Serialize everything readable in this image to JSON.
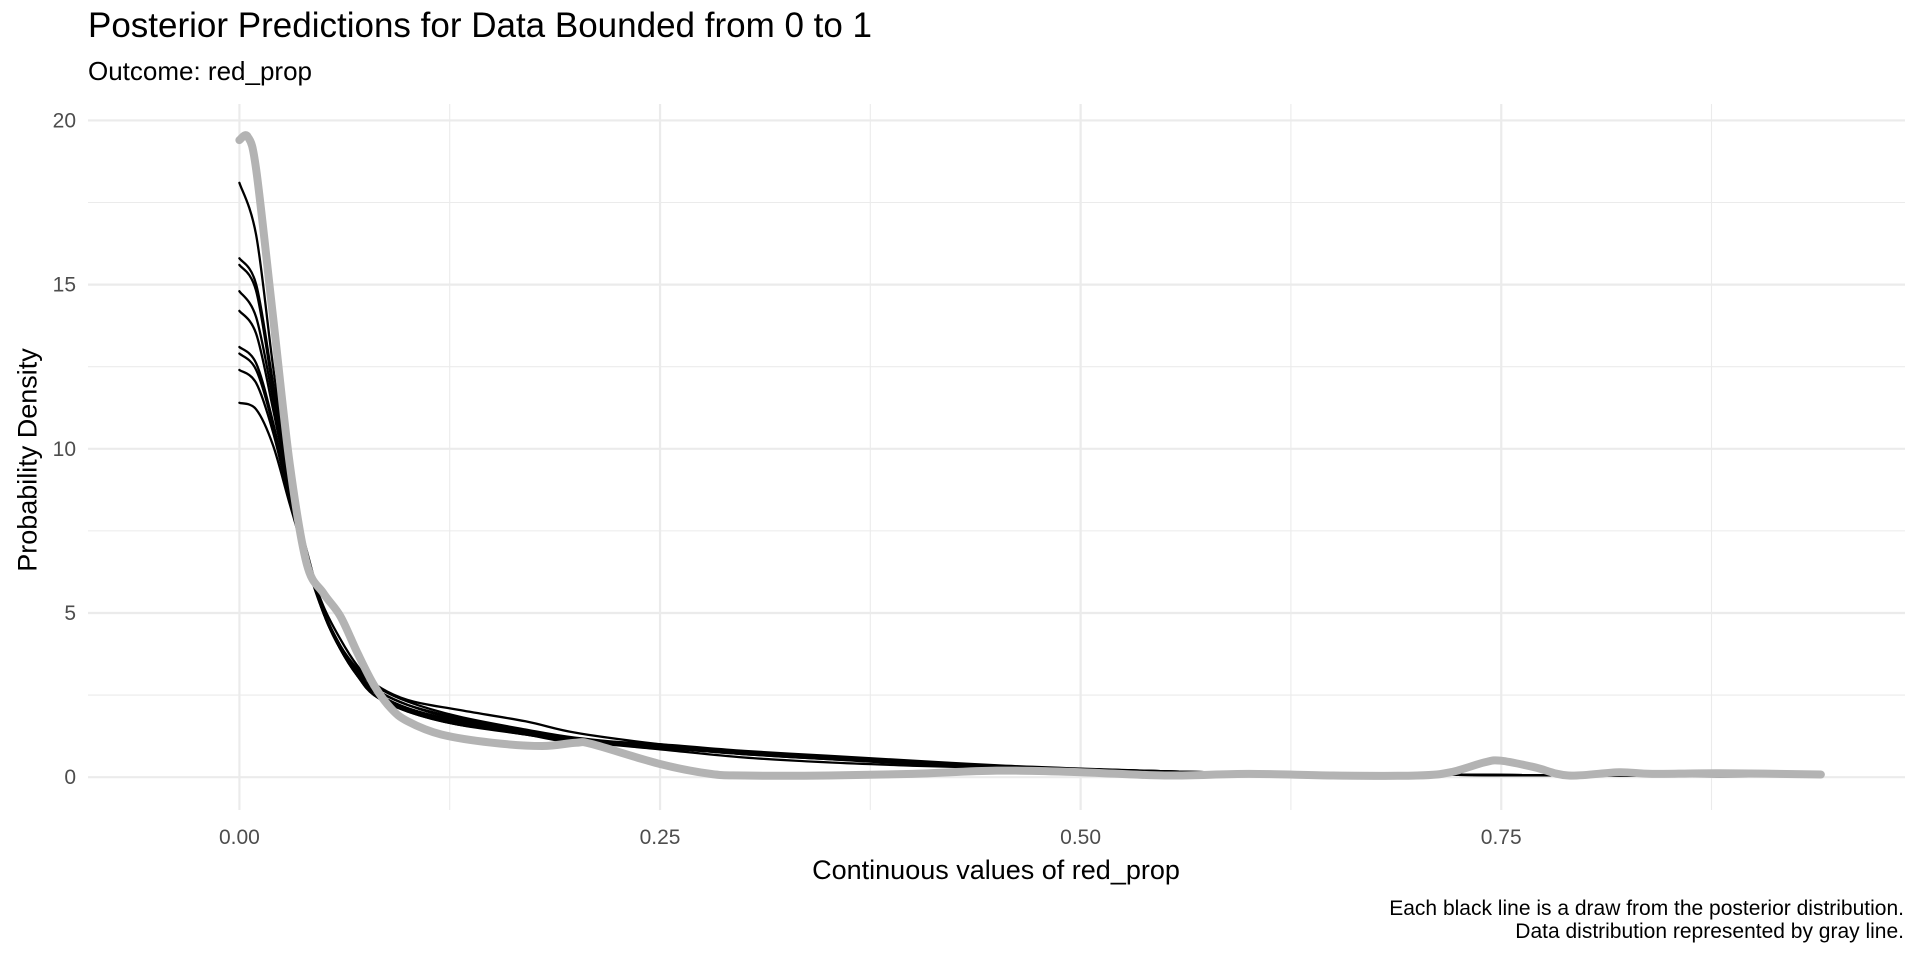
{
  "chart_data": {
    "type": "line",
    "title": "Posterior Predictions for Data Bounded from 0 to 1",
    "subtitle": "Outcome: red_prop",
    "xlabel": "Continuous values of red_prop",
    "ylabel": "Probability Density",
    "caption": [
      "Each black line is a draw from the posterior distribution.",
      "Data distribution represented by gray line."
    ],
    "xlim": [
      -0.09,
      0.99
    ],
    "ylim": [
      -1.0,
      20.5
    ],
    "x_ticks": [
      0.0,
      0.25,
      0.5,
      0.75
    ],
    "x_tick_labels": [
      "0.00",
      "0.25",
      "0.50",
      "0.75"
    ],
    "y_ticks": [
      0,
      5,
      10,
      15,
      20
    ],
    "y_tick_labels": [
      "0",
      "5",
      "10",
      "15",
      "20"
    ],
    "grid": true,
    "legend": "none",
    "colors": {
      "draws": "#000000",
      "data": "#b3b3b3",
      "grid": "#ebebeb"
    },
    "series": [
      {
        "values": [
          [
            0.0,
            18.1
          ],
          [
            0.01,
            16.5
          ],
          [
            0.02,
            12.5
          ],
          [
            0.03,
            9.0
          ],
          [
            0.04,
            6.8
          ],
          [
            0.05,
            5.0
          ],
          [
            0.06,
            3.9
          ],
          [
            0.07,
            3.1
          ],
          [
            0.08,
            2.5
          ],
          [
            0.1,
            2.0
          ],
          [
            0.13,
            1.6
          ],
          [
            0.17,
            1.35
          ],
          [
            0.2,
            1.1
          ],
          [
            0.25,
            0.85
          ],
          [
            0.3,
            0.6
          ],
          [
            0.35,
            0.45
          ],
          [
            0.4,
            0.35
          ],
          [
            0.45,
            0.28
          ],
          [
            0.5,
            0.2
          ],
          [
            0.55,
            0.15
          ],
          [
            0.6,
            0.12
          ],
          [
            0.7,
            0.08
          ],
          [
            0.8,
            0.05
          ],
          [
            0.94,
            0.03
          ]
        ]
      },
      {
        "values": [
          [
            0.0,
            15.8
          ],
          [
            0.01,
            15.0
          ],
          [
            0.02,
            12.0
          ],
          [
            0.03,
            9.0
          ],
          [
            0.04,
            6.9
          ],
          [
            0.05,
            5.1
          ],
          [
            0.06,
            4.0
          ],
          [
            0.07,
            3.2
          ],
          [
            0.08,
            2.6
          ],
          [
            0.1,
            2.05
          ],
          [
            0.13,
            1.65
          ],
          [
            0.17,
            1.3
          ],
          [
            0.2,
            1.1
          ],
          [
            0.25,
            0.9
          ],
          [
            0.3,
            0.7
          ],
          [
            0.35,
            0.55
          ],
          [
            0.4,
            0.4
          ],
          [
            0.45,
            0.3
          ],
          [
            0.5,
            0.22
          ],
          [
            0.55,
            0.16
          ],
          [
            0.6,
            0.12
          ],
          [
            0.7,
            0.08
          ],
          [
            0.8,
            0.05
          ],
          [
            0.94,
            0.03
          ]
        ]
      },
      {
        "values": [
          [
            0.0,
            15.6
          ],
          [
            0.01,
            14.8
          ],
          [
            0.02,
            11.8
          ],
          [
            0.03,
            8.9
          ],
          [
            0.04,
            6.7
          ],
          [
            0.05,
            5.0
          ],
          [
            0.06,
            3.9
          ],
          [
            0.07,
            3.1
          ],
          [
            0.08,
            2.5
          ],
          [
            0.1,
            2.0
          ],
          [
            0.13,
            1.6
          ],
          [
            0.17,
            1.3
          ],
          [
            0.2,
            1.05
          ],
          [
            0.25,
            0.95
          ],
          [
            0.3,
            0.75
          ],
          [
            0.35,
            0.6
          ],
          [
            0.4,
            0.45
          ],
          [
            0.45,
            0.32
          ],
          [
            0.5,
            0.24
          ],
          [
            0.55,
            0.17
          ],
          [
            0.6,
            0.12
          ],
          [
            0.7,
            0.08
          ],
          [
            0.8,
            0.05
          ],
          [
            0.94,
            0.03
          ]
        ]
      },
      {
        "values": [
          [
            0.0,
            14.8
          ],
          [
            0.01,
            14.0
          ],
          [
            0.02,
            11.5
          ],
          [
            0.03,
            8.8
          ],
          [
            0.04,
            6.7
          ],
          [
            0.05,
            5.0
          ],
          [
            0.06,
            3.9
          ],
          [
            0.07,
            3.1
          ],
          [
            0.08,
            2.6
          ],
          [
            0.1,
            2.1
          ],
          [
            0.13,
            1.7
          ],
          [
            0.17,
            1.35
          ],
          [
            0.2,
            1.1
          ],
          [
            0.25,
            0.9
          ],
          [
            0.3,
            0.7
          ],
          [
            0.35,
            0.55
          ],
          [
            0.4,
            0.42
          ],
          [
            0.45,
            0.3
          ],
          [
            0.5,
            0.22
          ],
          [
            0.55,
            0.16
          ],
          [
            0.6,
            0.12
          ],
          [
            0.7,
            0.08
          ],
          [
            0.8,
            0.05
          ],
          [
            0.94,
            0.03
          ]
        ]
      },
      {
        "values": [
          [
            0.0,
            14.2
          ],
          [
            0.01,
            13.5
          ],
          [
            0.02,
            11.2
          ],
          [
            0.03,
            8.7
          ],
          [
            0.04,
            6.6
          ],
          [
            0.05,
            5.0
          ],
          [
            0.06,
            3.9
          ],
          [
            0.07,
            3.1
          ],
          [
            0.08,
            2.6
          ],
          [
            0.1,
            2.1
          ],
          [
            0.13,
            1.7
          ],
          [
            0.17,
            1.35
          ],
          [
            0.2,
            1.1
          ],
          [
            0.25,
            0.95
          ],
          [
            0.3,
            0.75
          ],
          [
            0.35,
            0.6
          ],
          [
            0.4,
            0.45
          ],
          [
            0.45,
            0.33
          ],
          [
            0.5,
            0.24
          ],
          [
            0.55,
            0.17
          ],
          [
            0.6,
            0.12
          ],
          [
            0.7,
            0.08
          ],
          [
            0.8,
            0.05
          ],
          [
            0.94,
            0.03
          ]
        ]
      },
      {
        "values": [
          [
            0.0,
            13.1
          ],
          [
            0.01,
            12.6
          ],
          [
            0.02,
            10.8
          ],
          [
            0.03,
            8.5
          ],
          [
            0.04,
            6.6
          ],
          [
            0.05,
            5.0
          ],
          [
            0.06,
            3.9
          ],
          [
            0.07,
            3.2
          ],
          [
            0.08,
            2.7
          ],
          [
            0.1,
            2.2
          ],
          [
            0.13,
            1.75
          ],
          [
            0.17,
            1.4
          ],
          [
            0.2,
            1.15
          ],
          [
            0.25,
            0.95
          ],
          [
            0.3,
            0.75
          ],
          [
            0.35,
            0.6
          ],
          [
            0.4,
            0.45
          ],
          [
            0.45,
            0.34
          ],
          [
            0.5,
            0.25
          ],
          [
            0.55,
            0.18
          ],
          [
            0.6,
            0.13
          ],
          [
            0.7,
            0.08
          ],
          [
            0.8,
            0.05
          ],
          [
            0.94,
            0.03
          ]
        ]
      },
      {
        "values": [
          [
            0.0,
            12.9
          ],
          [
            0.01,
            12.4
          ],
          [
            0.02,
            10.7
          ],
          [
            0.03,
            8.5
          ],
          [
            0.04,
            6.6
          ],
          [
            0.05,
            5.0
          ],
          [
            0.06,
            3.9
          ],
          [
            0.07,
            3.2
          ],
          [
            0.08,
            2.7
          ],
          [
            0.1,
            2.2
          ],
          [
            0.13,
            1.8
          ],
          [
            0.17,
            1.4
          ],
          [
            0.2,
            1.15
          ],
          [
            0.25,
            1.0
          ],
          [
            0.3,
            0.8
          ],
          [
            0.35,
            0.65
          ],
          [
            0.4,
            0.5
          ],
          [
            0.45,
            0.36
          ],
          [
            0.5,
            0.26
          ],
          [
            0.55,
            0.18
          ],
          [
            0.6,
            0.13
          ],
          [
            0.7,
            0.08
          ],
          [
            0.8,
            0.05
          ],
          [
            0.94,
            0.03
          ]
        ]
      },
      {
        "values": [
          [
            0.0,
            12.4
          ],
          [
            0.01,
            12.0
          ],
          [
            0.02,
            10.5
          ],
          [
            0.03,
            8.4
          ],
          [
            0.04,
            6.5
          ],
          [
            0.05,
            5.0
          ],
          [
            0.06,
            4.0
          ],
          [
            0.07,
            3.3
          ],
          [
            0.08,
            2.8
          ],
          [
            0.1,
            2.3
          ],
          [
            0.13,
            1.85
          ],
          [
            0.17,
            1.45
          ],
          [
            0.2,
            1.2
          ],
          [
            0.25,
            0.95
          ],
          [
            0.3,
            0.75
          ],
          [
            0.35,
            0.6
          ],
          [
            0.4,
            0.45
          ],
          [
            0.45,
            0.34
          ],
          [
            0.5,
            0.25
          ],
          [
            0.55,
            0.18
          ],
          [
            0.6,
            0.13
          ],
          [
            0.7,
            0.08
          ],
          [
            0.8,
            0.05
          ],
          [
            0.94,
            0.03
          ]
        ]
      },
      {
        "values": [
          [
            0.0,
            11.4
          ],
          [
            0.01,
            11.2
          ],
          [
            0.02,
            10.1
          ],
          [
            0.03,
            8.3
          ],
          [
            0.04,
            6.6
          ],
          [
            0.05,
            5.2
          ],
          [
            0.06,
            4.2
          ],
          [
            0.07,
            3.4
          ],
          [
            0.08,
            2.85
          ],
          [
            0.1,
            2.35
          ],
          [
            0.13,
            2.05
          ],
          [
            0.17,
            1.7
          ],
          [
            0.2,
            1.35
          ],
          [
            0.25,
            1.0
          ],
          [
            0.3,
            0.75
          ],
          [
            0.35,
            0.6
          ],
          [
            0.4,
            0.45
          ],
          [
            0.45,
            0.34
          ],
          [
            0.5,
            0.25
          ],
          [
            0.55,
            0.18
          ],
          [
            0.6,
            0.13
          ],
          [
            0.7,
            0.08
          ],
          [
            0.8,
            0.05
          ],
          [
            0.94,
            0.03
          ]
        ]
      },
      {
        "name": "",
        "values": [
          [
            0.0,
            19.4
          ],
          [
            0.005,
            19.5
          ],
          [
            0.01,
            18.5
          ],
          [
            0.02,
            14.0
          ],
          [
            0.03,
            9.5
          ],
          [
            0.04,
            6.5
          ],
          [
            0.05,
            5.6
          ],
          [
            0.06,
            4.9
          ],
          [
            0.07,
            3.8
          ],
          [
            0.08,
            2.8
          ],
          [
            0.09,
            2.1
          ],
          [
            0.1,
            1.7
          ],
          [
            0.12,
            1.3
          ],
          [
            0.15,
            1.05
          ],
          [
            0.18,
            0.95
          ],
          [
            0.2,
            1.05
          ],
          [
            0.21,
            1.0
          ],
          [
            0.25,
            0.4
          ],
          [
            0.28,
            0.1
          ],
          [
            0.3,
            0.05
          ],
          [
            0.35,
            0.05
          ],
          [
            0.4,
            0.1
          ],
          [
            0.45,
            0.2
          ],
          [
            0.5,
            0.15
          ],
          [
            0.55,
            0.05
          ],
          [
            0.6,
            0.1
          ],
          [
            0.65,
            0.05
          ],
          [
            0.7,
            0.05
          ],
          [
            0.72,
            0.15
          ],
          [
            0.74,
            0.45
          ],
          [
            0.75,
            0.5
          ],
          [
            0.77,
            0.3
          ],
          [
            0.79,
            0.05
          ],
          [
            0.82,
            0.15
          ],
          [
            0.84,
            0.1
          ],
          [
            0.88,
            0.12
          ],
          [
            0.94,
            0.08
          ]
        ]
      }
    ]
  }
}
